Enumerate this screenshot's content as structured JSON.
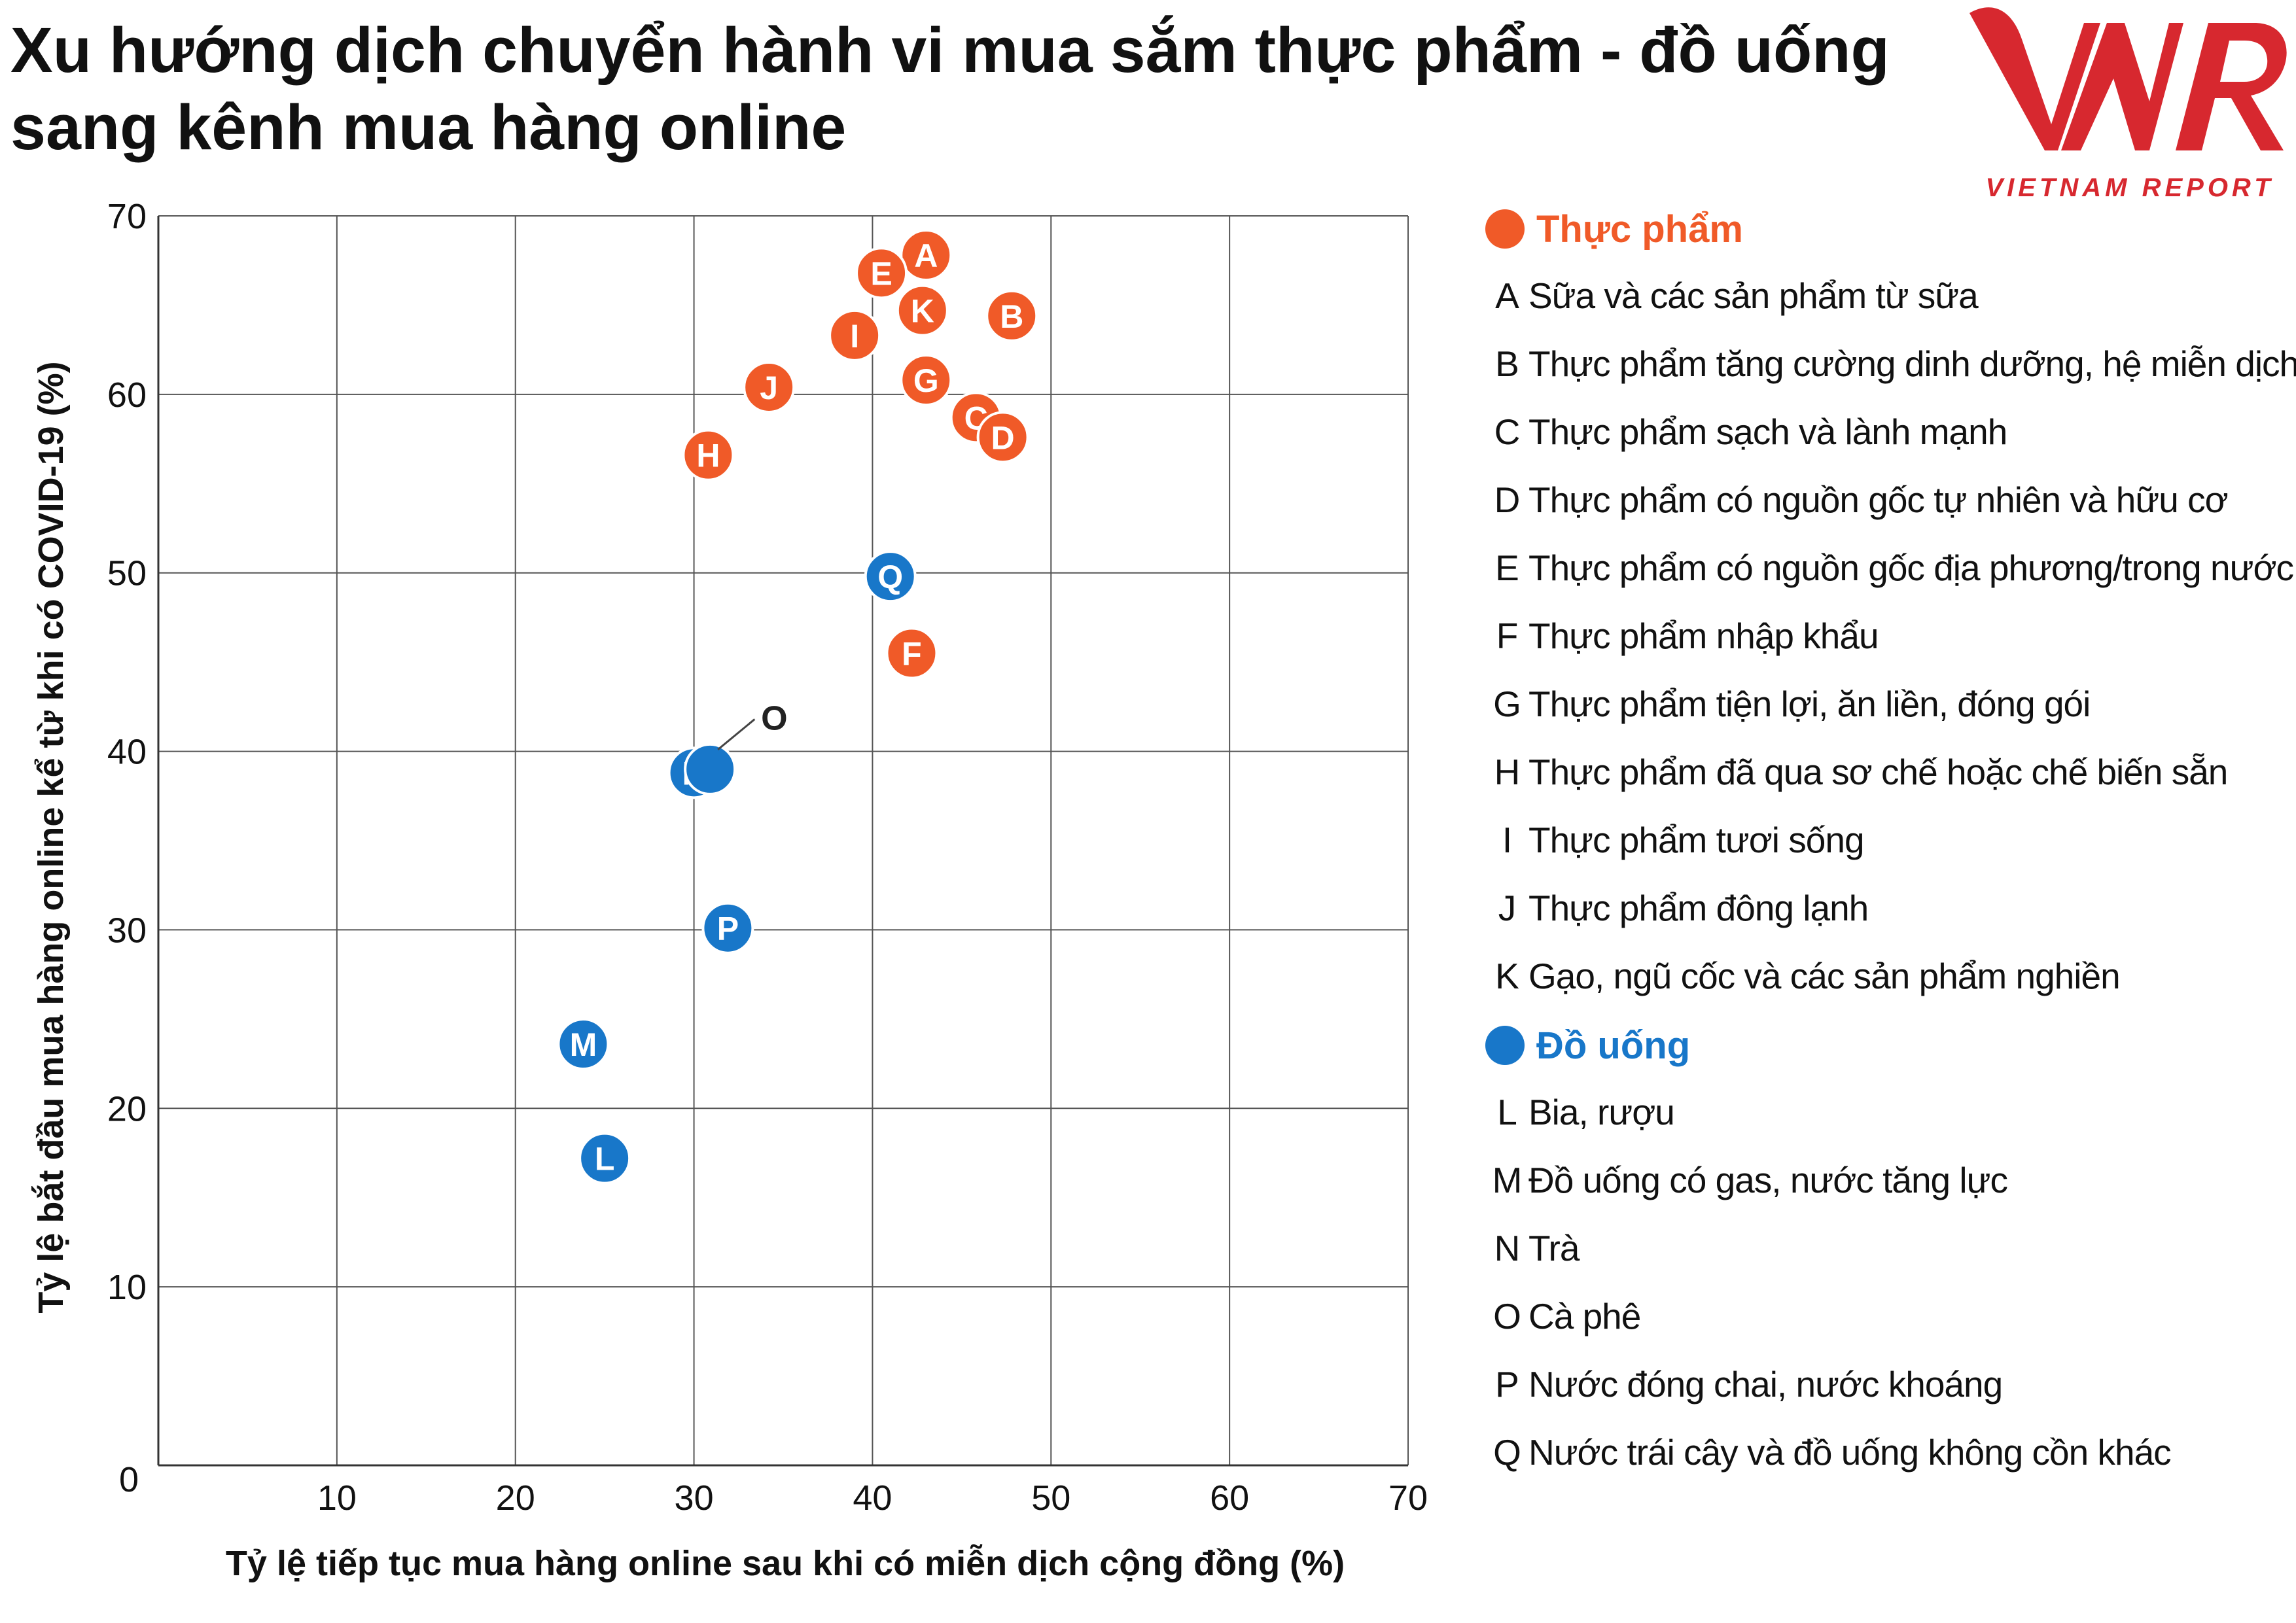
{
  "title": {
    "line1": "Xu hướng dịch chuyển hành vi mua sắm thực phẩm - đồ uống",
    "line2": "sang kênh mua hàng online"
  },
  "logo": {
    "text": "VNR",
    "subtext": "VIETNAM REPORT",
    "color": "#d7282f"
  },
  "colors": {
    "food": "#f05a28",
    "drink": "#1877c9",
    "coffee": "#222222",
    "grid": "#555555"
  },
  "chart_data": {
    "type": "scatter",
    "xlabel": "Tỷ lệ tiếp tục mua hàng online sau khi có miễn dịch cộng đồng (%)",
    "ylabel": "Tỷ lệ bắt đầu mua hàng online kể từ khi có COVID-19 (%)",
    "xlim": [
      0,
      70
    ],
    "ylim": [
      0,
      70
    ],
    "xticks": [
      10,
      20,
      30,
      40,
      50,
      60,
      70
    ],
    "yticks": [
      10,
      20,
      30,
      40,
      50,
      60,
      70
    ],
    "origin_label": "0",
    "grid": true,
    "series": [
      {
        "name": "Thực phẩm",
        "color": "#f05a28",
        "points": [
          {
            "label": "A",
            "x": 43.0,
            "y": 67.8
          },
          {
            "label": "B",
            "x": 47.8,
            "y": 64.4
          },
          {
            "label": "C",
            "x": 45.8,
            "y": 58.7
          },
          {
            "label": "D",
            "x": 47.3,
            "y": 57.6
          },
          {
            "label": "E",
            "x": 40.5,
            "y": 66.8
          },
          {
            "label": "F",
            "x": 42.2,
            "y": 45.5
          },
          {
            "label": "G",
            "x": 43.0,
            "y": 60.8
          },
          {
            "label": "H",
            "x": 30.8,
            "y": 56.6
          },
          {
            "label": "I",
            "x": 39.0,
            "y": 63.3
          },
          {
            "label": "J",
            "x": 34.2,
            "y": 60.4
          },
          {
            "label": "K",
            "x": 42.8,
            "y": 64.7
          }
        ]
      },
      {
        "name": "Đồ uống",
        "color": "#1877c9",
        "points": [
          {
            "label": "L",
            "x": 25.0,
            "y": 17.2
          },
          {
            "label": "M",
            "x": 23.8,
            "y": 23.6
          },
          {
            "label": "N",
            "x": 30.0,
            "y": 38.8
          },
          {
            "label": "O",
            "x": 30.9,
            "y": 39.0
          },
          {
            "label": "P",
            "x": 31.9,
            "y": 30.1
          },
          {
            "label": "Q",
            "x": 41.0,
            "y": 49.8
          }
        ]
      }
    ]
  },
  "legend": {
    "food_title": "Thực phẩm",
    "drink_title": "Đồ uống",
    "food_items": [
      {
        "letter": "A",
        "text": "Sữa và các sản phẩm từ sữa"
      },
      {
        "letter": "B",
        "text": "Thực phẩm tăng cường dinh dưỡng, hệ miễn dịch"
      },
      {
        "letter": "C",
        "text": "Thực phẩm sạch và lành mạnh"
      },
      {
        "letter": "D",
        "text": "Thực phẩm có nguồn gốc tự nhiên và hữu cơ"
      },
      {
        "letter": "E",
        "text": "Thực phẩm có nguồn gốc địa phương/trong nước"
      },
      {
        "letter": "F",
        "text": "Thực phẩm nhập khẩu"
      },
      {
        "letter": "G",
        "text": "Thực phẩm tiện lợi, ăn liền, đóng gói"
      },
      {
        "letter": "H",
        "text": "Thực phẩm đã qua sơ chế hoặc chế biến sẵn"
      },
      {
        "letter": "I",
        "text": "Thực phẩm tươi sống"
      },
      {
        "letter": "J",
        "text": "Thực phẩm đông lạnh"
      },
      {
        "letter": "K",
        "text": "Gạo, ngũ cốc và các sản phẩm nghiền"
      }
    ],
    "drink_items": [
      {
        "letter": "L",
        "text": "Bia, rượu"
      },
      {
        "letter": "M",
        "text": "Đồ uống có gas, nước tăng lực"
      },
      {
        "letter": "N",
        "text": "Trà"
      },
      {
        "letter": "O",
        "text": "Cà phê"
      },
      {
        "letter": "P",
        "text": "Nước đóng chai, nước khoáng"
      },
      {
        "letter": "Q",
        "text": "Nước trái cây và đồ uống không cồn khác"
      }
    ]
  }
}
